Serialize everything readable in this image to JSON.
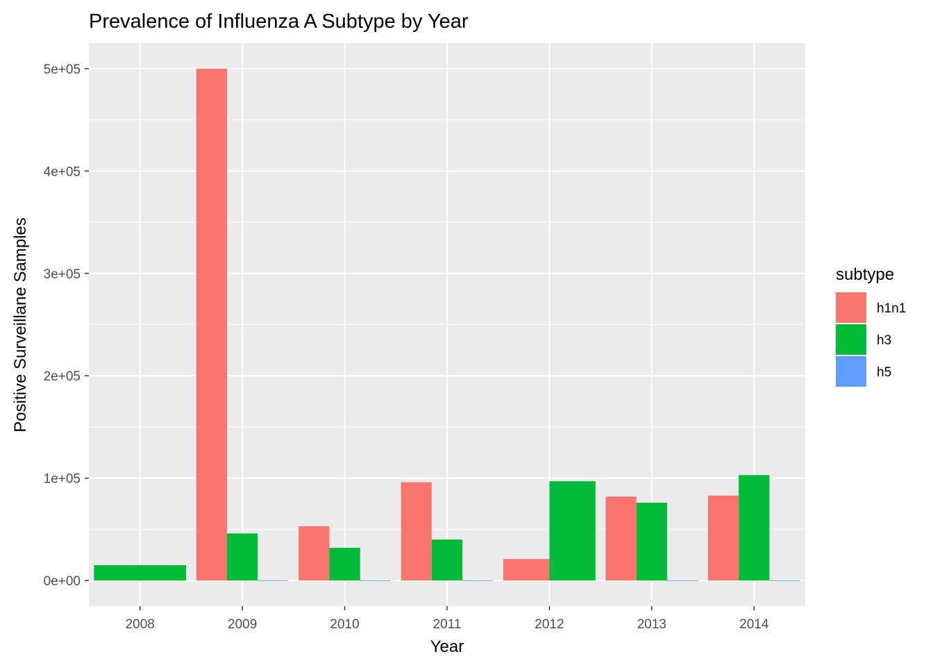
{
  "chart_data": {
    "type": "bar",
    "title": "Prevalence of Influenza A Subtype by Year",
    "xlabel": "Year",
    "ylabel": "Positive Surveillane Samples",
    "categories": [
      "2008",
      "2009",
      "2010",
      "2011",
      "2012",
      "2013",
      "2014"
    ],
    "series": [
      {
        "name": "h1n1",
        "color": "#F8766D",
        "values": [
          0,
          500000,
          53000,
          96000,
          21000,
          82000,
          83000
        ]
      },
      {
        "name": "h3",
        "color": "#00BA38",
        "values": [
          15000,
          46000,
          32000,
          40000,
          97000,
          76000,
          103000
        ]
      },
      {
        "name": "h5",
        "color": "#619CFF",
        "values": [
          0,
          300,
          200,
          200,
          0,
          200,
          200
        ]
      }
    ],
    "bar_slots": {
      "2008": [
        "h3"
      ],
      "2009": [
        "h1n1",
        "h3",
        "h5"
      ],
      "2010": [
        "h1n1",
        "h3",
        "h5"
      ],
      "2011": [
        "h1n1",
        "h3",
        "h5"
      ],
      "2012": [
        "h1n1",
        "h3"
      ],
      "2013": [
        "h1n1",
        "h3",
        "h5"
      ],
      "2014": [
        "h1n1",
        "h3",
        "h5"
      ]
    },
    "ylim": [
      -25000,
      525000
    ],
    "y_ticks": [
      0,
      100000,
      200000,
      300000,
      400000,
      500000
    ],
    "y_tick_labels": [
      "0e+00",
      "1e+05",
      "2e+05",
      "3e+05",
      "4e+05",
      "5e+05"
    ],
    "legend": {
      "title": "subtype",
      "position": "right"
    },
    "grid": true,
    "panel_background": "#EBEBEB",
    "grid_color": "#FFFFFF"
  }
}
